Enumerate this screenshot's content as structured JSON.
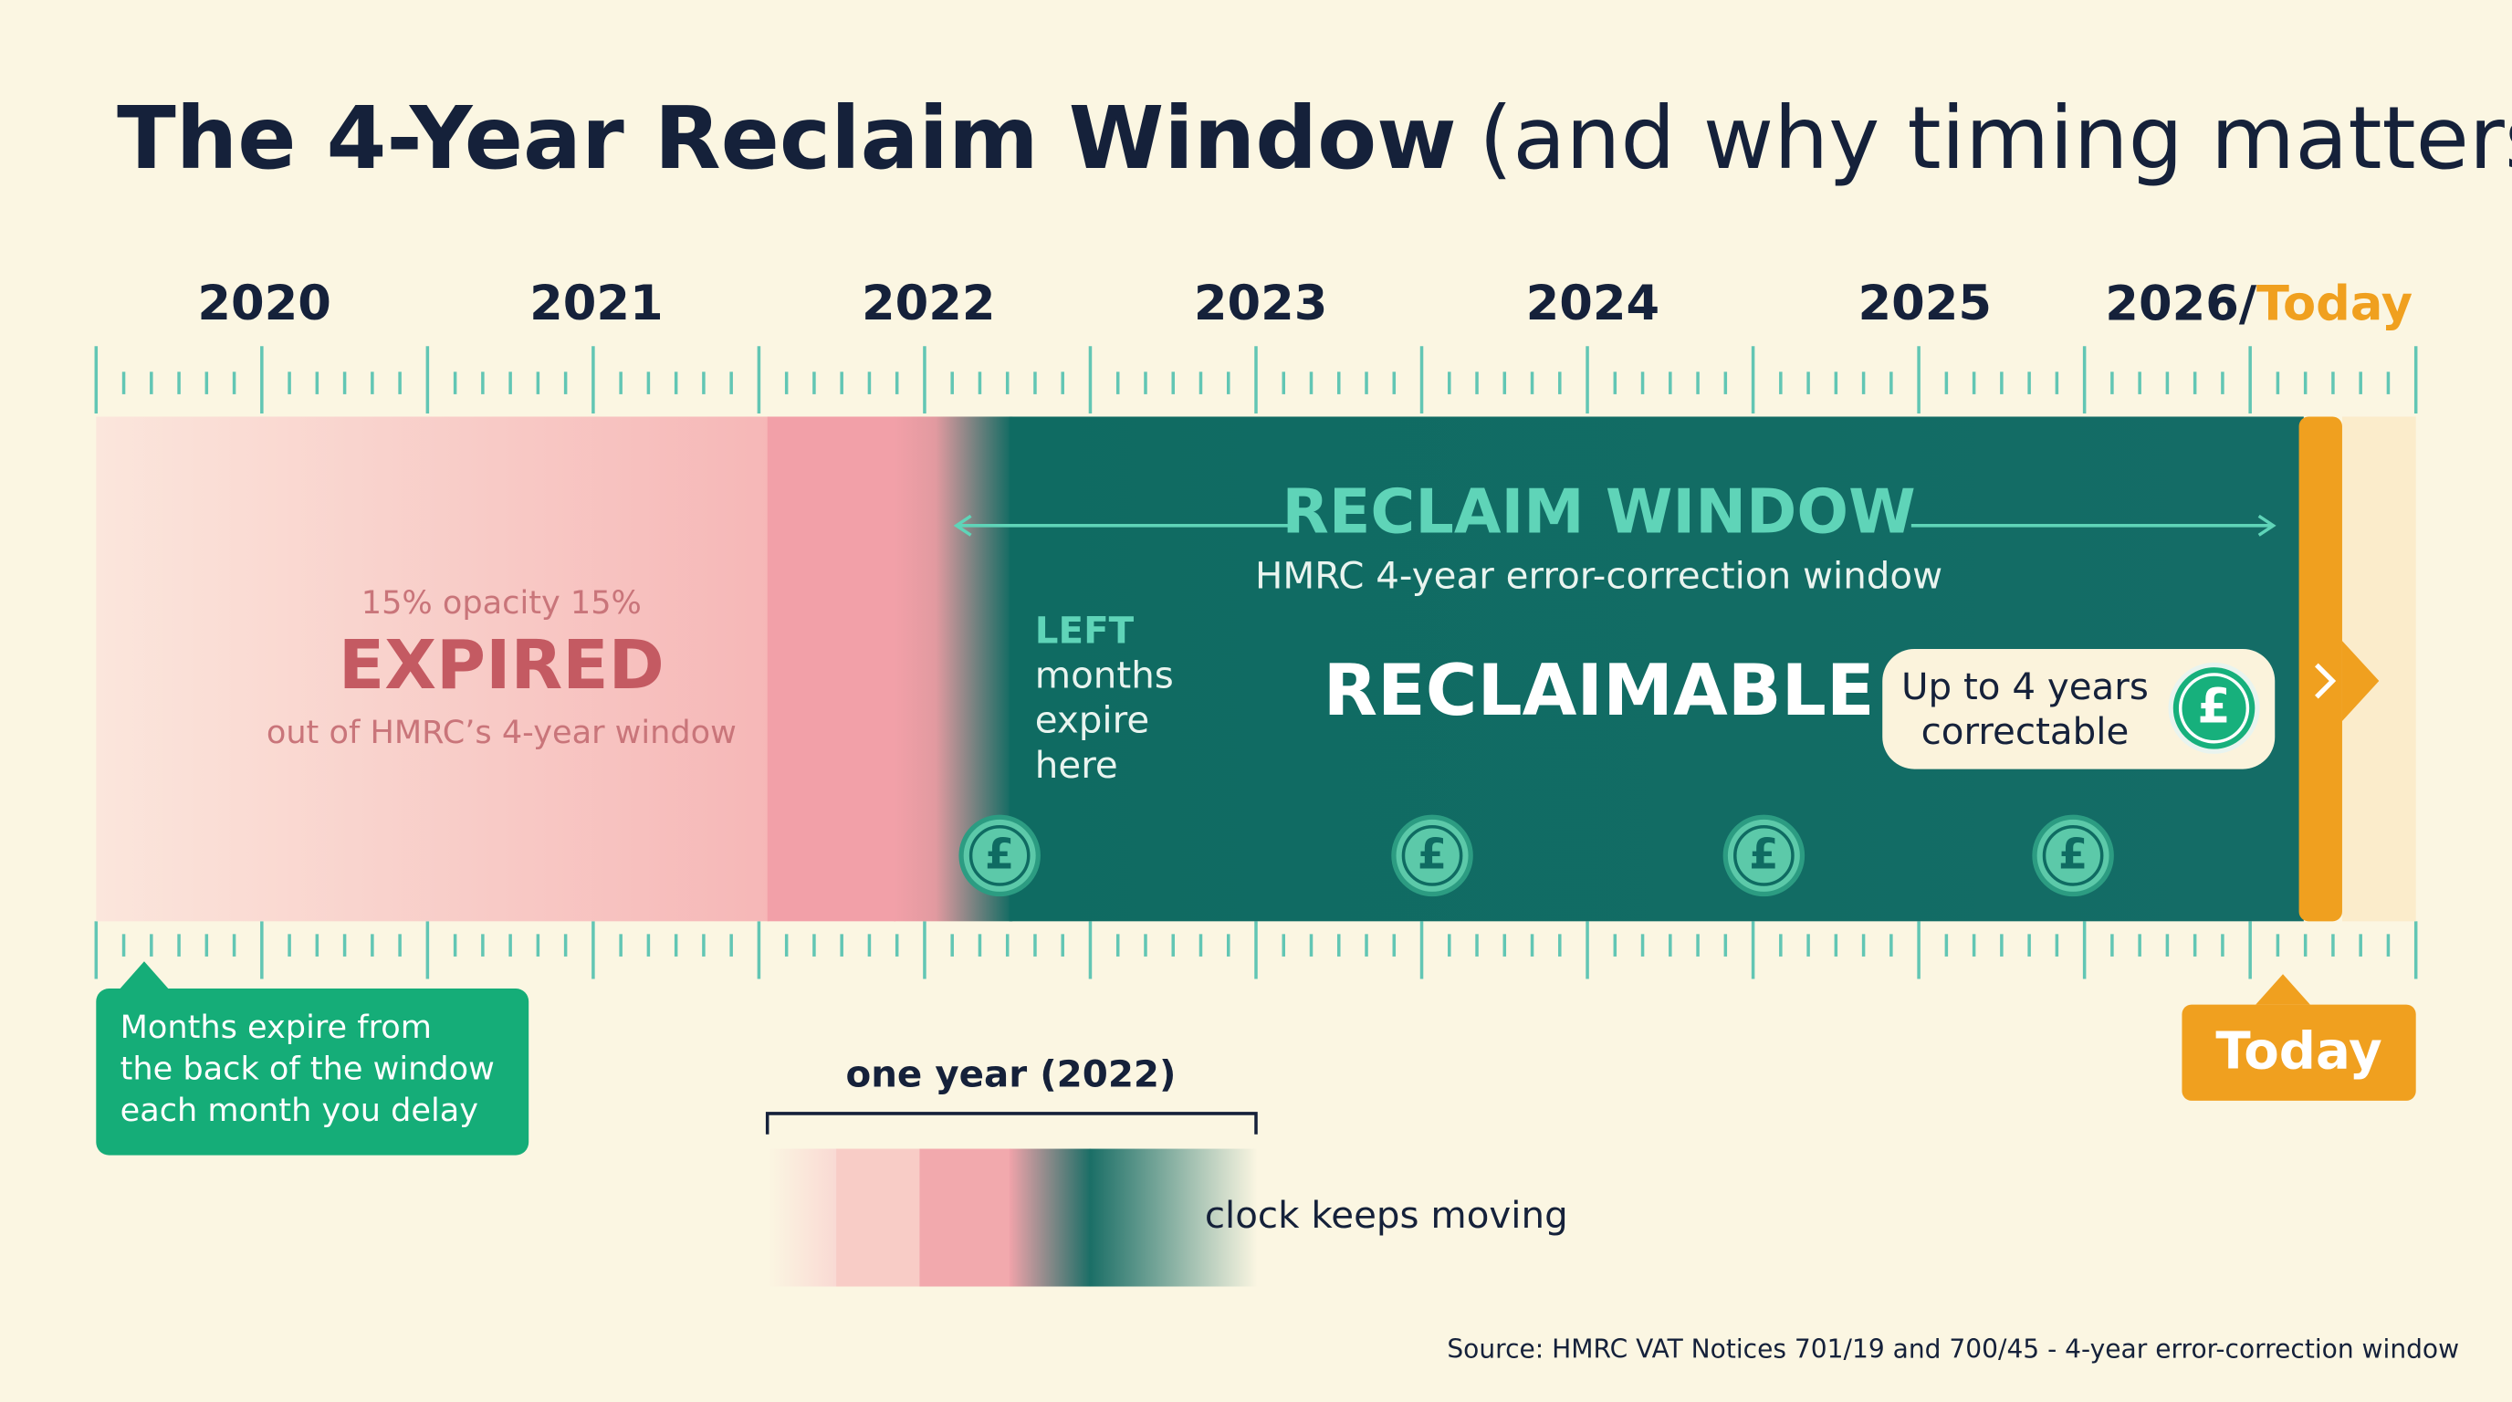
{
  "header": {
    "title_bold": "The 4-Year Reclaim Window",
    "title_rest": "(and why timing matters)"
  },
  "timeline": {
    "years": [
      "2020",
      "2021",
      "2022",
      "2023",
      "2024",
      "2025",
      "2026/"
    ],
    "today_suffix": "Today"
  },
  "expired": {
    "note": "15% opacity 15%",
    "label": "EXPIRED",
    "caption": "out of HMRC’s 4-year window"
  },
  "reclaim": {
    "title": "RECLAIM WINDOW",
    "subtitle": "HMRC 4-year error-correction window",
    "left_lines": [
      "LEFT",
      "months",
      "expire",
      "here"
    ],
    "label": "RECLAIMABLE",
    "badge_lines": [
      "Up to 4 years",
      "correctable"
    ],
    "currency_symbol": "£"
  },
  "callout": {
    "lines": [
      "Months expire from",
      "the back of the window",
      "each month you delay"
    ]
  },
  "today_badge": "Today",
  "legend": {
    "bracket_label": "one year (2022)",
    "caption": "clock keeps moving"
  },
  "footer": {
    "source": "Source: HMRC VAT Notices 701/19 and 700/45 - 4-year error-correction window"
  }
}
